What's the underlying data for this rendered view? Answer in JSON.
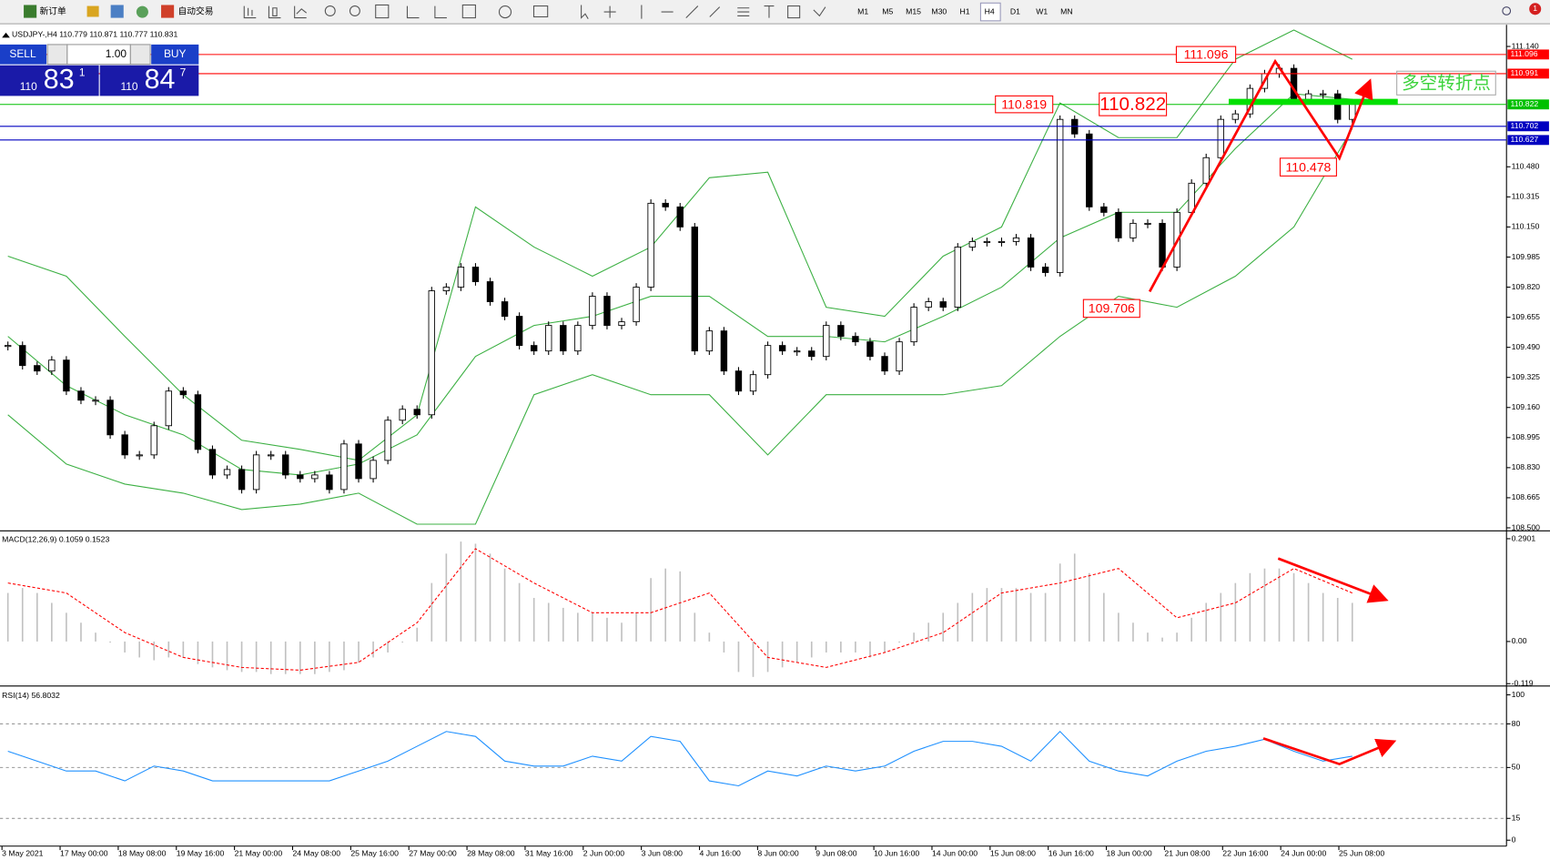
{
  "toolbar": {
    "new_order": "新订单",
    "auto_trading": "自动交易",
    "timeframes": [
      "M1",
      "M5",
      "M15",
      "M30",
      "H1",
      "H4",
      "D1",
      "W1",
      "MN"
    ],
    "notifications": 1
  },
  "header": "USDJPY-,H4  110.779 110.871 110.777 110.831",
  "trade_panel": {
    "sell": "SELL",
    "buy": "BUY",
    "lots": "1.00",
    "sell_price": {
      "big": "110",
      "main": "83",
      "small": "1"
    },
    "buy_price": {
      "big": "110",
      "main": "84",
      "small": "7"
    }
  },
  "time_axis": [
    "3 May 2021",
    "17 May 00:00",
    "18 May 08:00",
    "19 May 16:00",
    "21 May 00:00",
    "24 May 08:00",
    "25 May 16:00",
    "27 May 00:00",
    "28 May 08:00",
    "31 May 16:00",
    "2 Jun 00:00",
    "3 Jun 08:00",
    "4 Jun 16:00",
    "8 Jun 00:00",
    "9 Jun 08:00",
    "10 Jun 16:00",
    "14 Jun 00:00",
    "15 Jun 08:00",
    "16 Jun 16:00",
    "18 Jun 00:00",
    "21 Jun 08:00",
    "22 Jun 16:00",
    "24 Jun 00:00",
    "25 Jun 08:00"
  ],
  "chart_data": [
    {
      "type": "candlestick",
      "close": [
        109.5,
        109.39,
        109.36,
        109.42,
        109.25,
        109.2,
        109.2,
        109.01,
        108.9,
        108.9,
        109.06,
        109.25,
        109.23,
        108.93,
        108.79,
        108.82,
        108.71,
        108.9,
        108.9,
        108.79,
        108.77,
        108.79,
        108.71,
        108.96,
        108.77,
        108.87,
        109.09,
        109.15,
        109.12,
        109.8,
        109.82,
        109.93,
        109.85,
        109.74,
        109.66,
        109.5,
        109.47,
        109.61,
        109.47,
        109.61,
        109.77,
        109.61,
        109.63,
        109.82,
        110.28,
        110.26,
        110.15,
        109.47,
        109.58,
        109.36,
        109.25,
        109.34,
        109.5,
        109.47,
        109.47,
        109.44,
        109.61,
        109.55,
        109.52,
        109.44,
        109.36,
        109.52,
        109.71,
        109.74,
        109.71,
        110.04,
        110.07,
        110.07,
        110.07,
        110.09,
        109.93,
        109.9,
        110.74,
        110.66,
        110.26,
        110.23,
        110.09,
        110.17,
        110.17,
        109.93,
        110.23,
        110.39,
        110.53,
        110.74,
        110.77,
        110.91,
        110.99,
        111.02,
        110.85,
        110.88,
        110.88,
        110.74,
        110.83
      ],
      "color_up": "#ffffff",
      "color_down": "#000000",
      "ylim": [
        108.489,
        111.259
      ],
      "yticks": [
        {
          "value": 111.14,
          "label": "111.140"
        },
        {
          "value": 110.48,
          "label": "110.480"
        },
        110.315,
        {
          "value": 110.15,
          "label": "110.150"
        },
        109.985,
        {
          "value": 109.82,
          "label": "109.820"
        },
        109.655,
        {
          "value": 109.49,
          "label": "109.490"
        },
        109.325,
        {
          "value": 109.16,
          "label": "109.160"
        },
        108.995,
        {
          "value": 108.83,
          "label": "108.830"
        },
        108.665,
        {
          "value": 108.5,
          "label": "108.500"
        }
      ],
      "bands": {
        "color": "#3cb043",
        "upper": [
          109.99,
          109.88,
          109.55,
          109.23,
          108.98,
          108.93,
          108.87,
          109.12,
          110.26,
          110.04,
          109.88,
          110.04,
          110.42,
          110.45,
          109.71,
          109.66,
          109.99,
          110.15,
          110.83,
          110.64,
          110.64,
          111.07,
          111.23,
          111.07
        ],
        "middle": [
          109.55,
          109.28,
          109.12,
          109.01,
          108.82,
          108.79,
          108.85,
          109.01,
          109.44,
          109.61,
          109.66,
          109.77,
          109.77,
          109.55,
          109.55,
          109.52,
          109.66,
          109.82,
          110.09,
          110.23,
          110.23,
          110.58,
          110.88,
          110.85
        ],
        "lower": [
          109.12,
          108.85,
          108.74,
          108.69,
          108.6,
          108.63,
          108.69,
          108.52,
          108.52,
          109.23,
          109.34,
          109.23,
          109.23,
          108.9,
          109.23,
          109.23,
          109.23,
          109.28,
          109.55,
          109.77,
          109.71,
          109.88,
          110.15,
          110.69
        ]
      },
      "levels": [
        {
          "value": 111.096,
          "color": "#ff0000"
        },
        {
          "value": 110.991,
          "color": "#ff0000"
        },
        {
          "value": 110.822,
          "color": "#00c000"
        },
        {
          "value": 110.702,
          "color": "#0000c0"
        },
        {
          "value": 110.627,
          "color": "#0000c0"
        }
      ],
      "annotations": [
        {
          "text": "111.096",
          "color": "#ff0000"
        },
        {
          "text": "110.819",
          "color": "#ff0000"
        },
        {
          "text": "110.822",
          "color": "#ff0000"
        },
        {
          "text": "110.478",
          "color": "#ff0000"
        },
        {
          "text": "109.706",
          "color": "#ff0000"
        },
        {
          "text": "多空转折点",
          "color": "#3cd33c"
        }
      ]
    },
    {
      "type": "macd",
      "label": "MACD(12,26,9) 0.1059 0.1523",
      "histogram": [
        0.137,
        0.151,
        0.137,
        0.109,
        0.081,
        0.053,
        0.025,
        -0.003,
        -0.031,
        -0.045,
        -0.053,
        -0.045,
        -0.045,
        -0.064,
        -0.073,
        -0.081,
        -0.086,
        -0.086,
        -0.092,
        -0.092,
        -0.092,
        -0.092,
        -0.086,
        -0.081,
        -0.059,
        -0.045,
        -0.031,
        -0.003,
        0.039,
        0.165,
        0.248,
        0.282,
        0.276,
        0.248,
        0.206,
        0.165,
        0.123,
        0.109,
        0.095,
        0.081,
        0.081,
        0.067,
        0.053,
        0.081,
        0.179,
        0.206,
        0.198,
        0.081,
        0.025,
        -0.031,
        -0.086,
        -0.1,
        -0.086,
        -0.073,
        -0.059,
        -0.045,
        -0.031,
        -0.031,
        -0.031,
        -0.045,
        -0.031,
        -0.003,
        0.025,
        0.053,
        0.081,
        0.109,
        0.137,
        0.151,
        0.151,
        0.151,
        0.137,
        0.137,
        0.22,
        0.248,
        0.193,
        0.137,
        0.081,
        0.053,
        0.025,
        0.011,
        0.025,
        0.067,
        0.109,
        0.137,
        0.165,
        0.193,
        0.206,
        0.206,
        0.193,
        0.165,
        0.137,
        0.123,
        0.109
      ],
      "histogram_color": "#c0c0c0",
      "signal": [
        0.165,
        0.137,
        0.025,
        -0.045,
        -0.073,
        -0.081,
        -0.059,
        0.053,
        0.262,
        0.165,
        0.081,
        0.081,
        0.137,
        -0.045,
        -0.073,
        -0.031,
        0.025,
        0.137,
        0.165,
        0.206,
        0.067,
        0.109,
        0.206,
        0.137
      ],
      "signal_color": "#ff0000",
      "ylim": [
        -0.12,
        0.3096
      ],
      "yticks": [
        0.2901,
        {
          "value": 0,
          "label": "0.00"
        },
        -0.119
      ]
    },
    {
      "type": "line",
      "label": "RSI(14) 56.8032",
      "values": [
        61.2,
        54.4,
        47.6,
        47.6,
        40.8,
        51.0,
        47.6,
        40.8,
        40.8,
        40.8,
        40.8,
        40.8,
        47.6,
        54.4,
        64.6,
        74.8,
        71.4,
        54.4,
        51.0,
        51.0,
        57.8,
        54.4,
        71.4,
        68.0,
        40.8,
        37.4,
        47.6,
        44.2,
        51.0,
        47.6,
        51.0,
        61.2,
        68.0,
        68.0,
        64.6,
        54.4,
        74.8,
        54.4,
        47.6,
        44.2,
        54.4,
        61.2,
        64.6,
        69.4,
        61.2,
        54.4,
        57.8
      ],
      "color": "#1e90ff",
      "ylim": [
        -3.4,
        105.4
      ],
      "yticks": [
        100,
        80,
        50,
        15,
        0
      ]
    }
  ]
}
